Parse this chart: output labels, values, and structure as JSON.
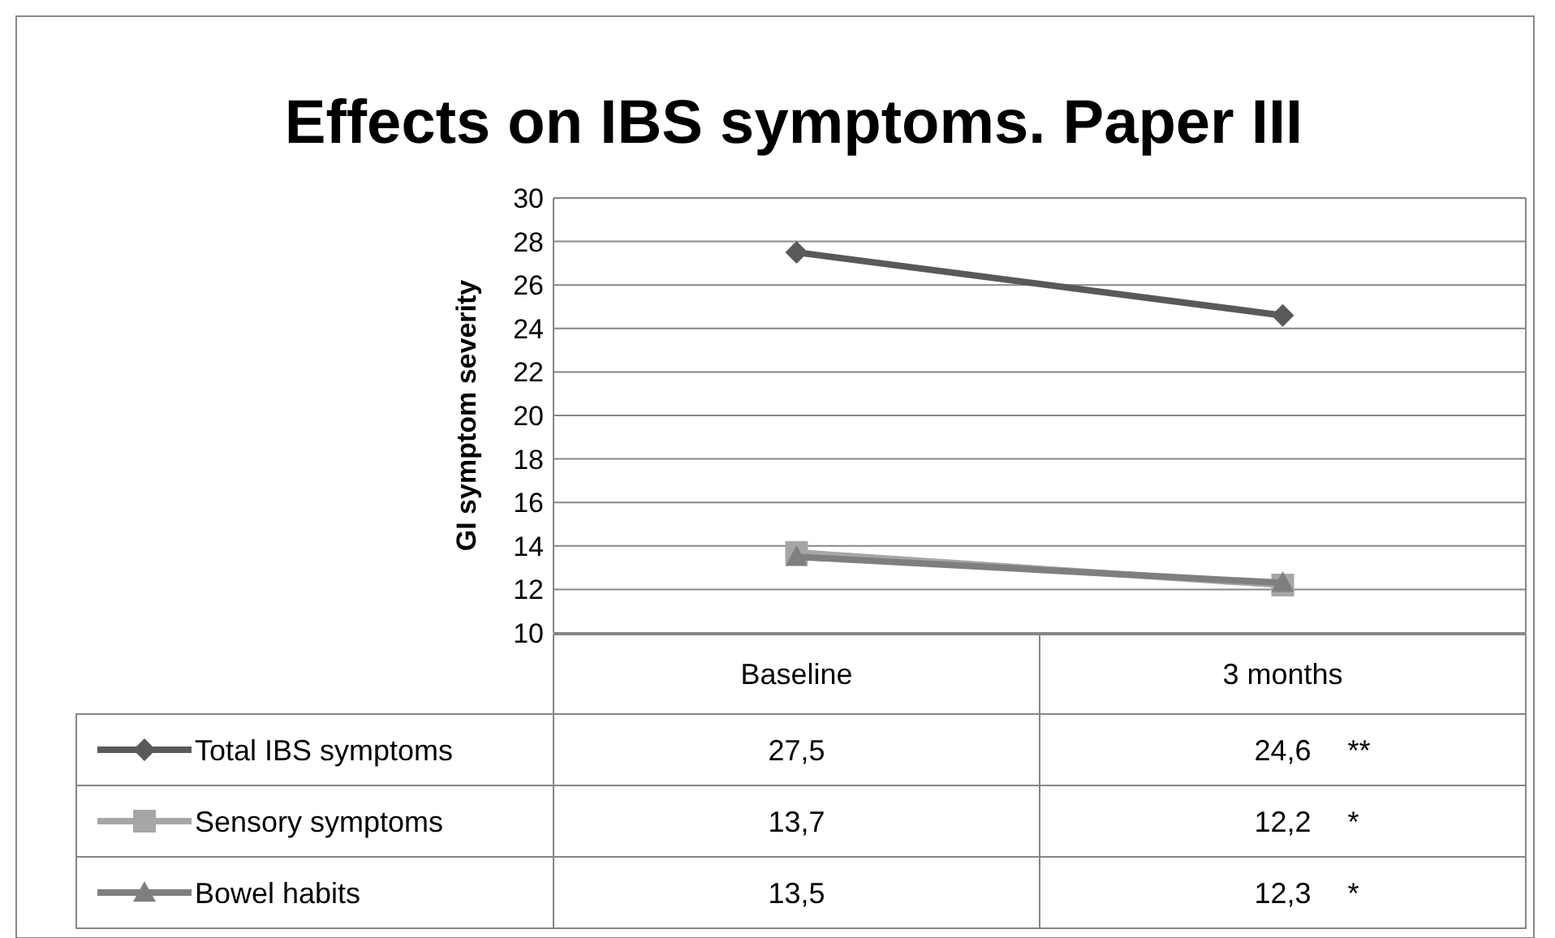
{
  "chart_data": {
    "type": "line",
    "title": "Effects on IBS symptoms. Paper III",
    "ylabel": "GI symptom severity",
    "categories": [
      "Baseline",
      "3 months"
    ],
    "series": [
      {
        "name": "Total IBS symptoms",
        "color": "#595959",
        "marker": "diamond",
        "values": [
          27.5,
          24.6
        ],
        "value_labels": [
          "27,5",
          "24,6"
        ]
      },
      {
        "name": "Sensory symptoms",
        "color": "#a6a6a6",
        "marker": "square",
        "values": [
          13.7,
          12.2
        ],
        "value_labels": [
          "13,7",
          "12,2"
        ]
      },
      {
        "name": "Bowel habits",
        "color": "#7f7f7f",
        "marker": "triangle",
        "values": [
          13.5,
          12.3
        ],
        "value_labels": [
          "13,5",
          "12,3"
        ]
      }
    ],
    "ylim": [
      10,
      30
    ],
    "yticks": [
      10,
      12,
      14,
      16,
      18,
      20,
      22,
      24,
      26,
      28,
      30
    ],
    "grid": "y",
    "legend": "bottom",
    "line_style": "solid",
    "annotations": [
      "**",
      "*",
      "*"
    ]
  }
}
